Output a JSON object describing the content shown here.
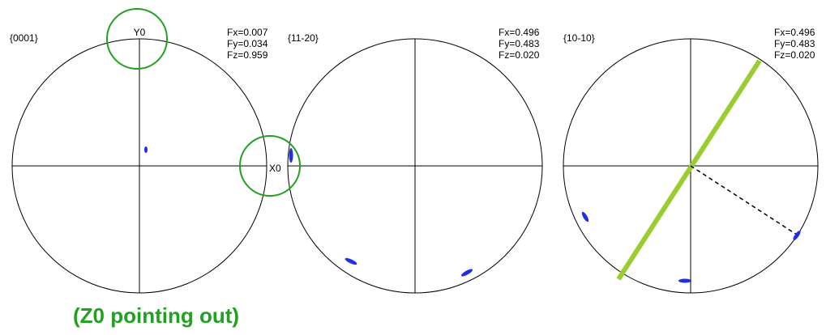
{
  "panels": [
    {
      "label": "{0001}",
      "fx": "Fx=0.007",
      "fy": "Fy=0.034",
      "fz": "Fz=0.959"
    },
    {
      "label": "{11-20}",
      "fx": "Fx=0.496",
      "fy": "Fy=0.483",
      "fz": "Fz=0.020"
    },
    {
      "label": "{10-10}",
      "fx": "Fx=0.496",
      "fy": "Fy=0.483",
      "fz": "Fz=0.020"
    }
  ],
  "axis_labels": {
    "y": "Y0",
    "x": "X0"
  },
  "caption": "(Z0 pointing out)"
}
